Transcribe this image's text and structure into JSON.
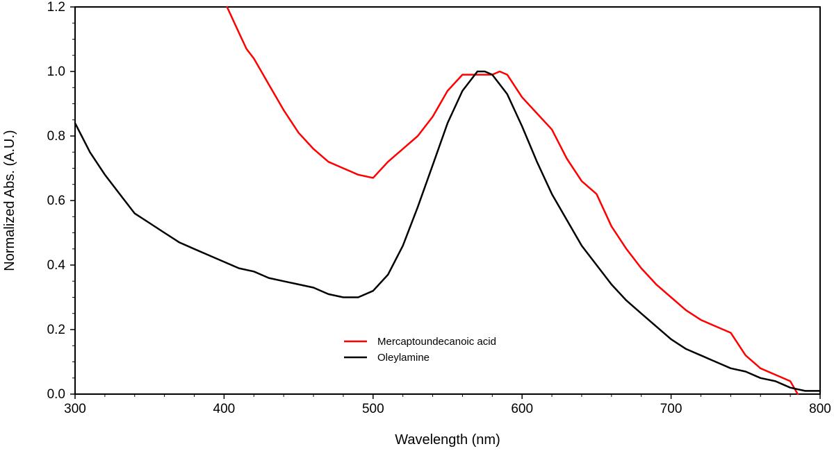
{
  "chart_data": {
    "type": "line",
    "title": "",
    "xlabel": "Wavelength (nm)",
    "ylabel": "Normalized Abs. (A.U.)",
    "xlim": [
      300,
      800
    ],
    "ylim": [
      0.0,
      1.2
    ],
    "xticks": [
      300,
      400,
      500,
      600,
      700,
      800
    ],
    "xtick_labels": [
      "300",
      "400",
      "500",
      "600",
      "700",
      "800"
    ],
    "yticks": [
      0.0,
      0.2,
      0.4,
      0.6,
      0.8,
      1.0,
      1.2
    ],
    "ytick_labels": [
      "0.0",
      "0.2",
      "0.4",
      "0.6",
      "0.8",
      "1.0",
      "1.2"
    ],
    "grid": false,
    "legend_position": "bottom-center",
    "series": [
      {
        "name": "Mercaptoundecanoic acid",
        "color": "#ff0000",
        "x": [
          402,
          410,
          415,
          420,
          430,
          440,
          450,
          460,
          470,
          480,
          490,
          500,
          510,
          520,
          530,
          540,
          550,
          560,
          570,
          580,
          585,
          590,
          600,
          610,
          620,
          630,
          640,
          650,
          660,
          670,
          680,
          690,
          700,
          710,
          720,
          730,
          740,
          750,
          760,
          770,
          780,
          785
        ],
        "y": [
          1.2,
          1.12,
          1.07,
          1.04,
          0.96,
          0.88,
          0.81,
          0.76,
          0.72,
          0.7,
          0.68,
          0.67,
          0.72,
          0.76,
          0.8,
          0.86,
          0.94,
          0.99,
          0.99,
          0.99,
          1.0,
          0.99,
          0.92,
          0.87,
          0.82,
          0.73,
          0.66,
          0.62,
          0.52,
          0.45,
          0.39,
          0.34,
          0.3,
          0.26,
          0.23,
          0.21,
          0.19,
          0.12,
          0.08,
          0.06,
          0.04,
          0.0
        ]
      },
      {
        "name": "Oleylamine",
        "color": "#000000",
        "x": [
          300,
          310,
          320,
          330,
          340,
          350,
          360,
          370,
          380,
          390,
          400,
          410,
          420,
          430,
          440,
          450,
          460,
          470,
          480,
          490,
          500,
          510,
          520,
          530,
          540,
          550,
          560,
          570,
          575,
          580,
          590,
          600,
          610,
          620,
          630,
          640,
          650,
          660,
          670,
          680,
          690,
          700,
          710,
          720,
          730,
          740,
          750,
          760,
          770,
          780,
          790,
          800
        ],
        "y": [
          0.84,
          0.75,
          0.68,
          0.62,
          0.56,
          0.53,
          0.5,
          0.47,
          0.45,
          0.43,
          0.41,
          0.39,
          0.38,
          0.36,
          0.35,
          0.34,
          0.33,
          0.31,
          0.3,
          0.3,
          0.32,
          0.37,
          0.46,
          0.58,
          0.71,
          0.84,
          0.94,
          1.0,
          1.0,
          0.99,
          0.93,
          0.83,
          0.72,
          0.62,
          0.54,
          0.46,
          0.4,
          0.34,
          0.29,
          0.25,
          0.21,
          0.17,
          0.14,
          0.12,
          0.1,
          0.08,
          0.07,
          0.05,
          0.04,
          0.02,
          0.01,
          0.01
        ]
      }
    ]
  }
}
